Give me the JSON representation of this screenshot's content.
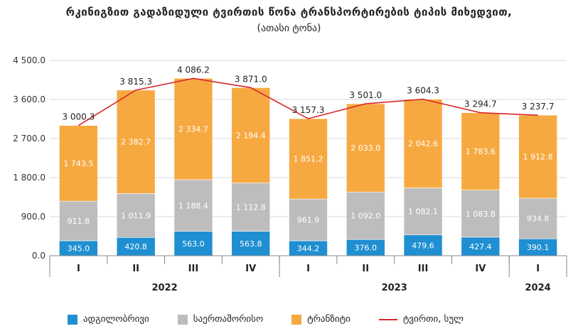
{
  "chart_data": {
    "type": "bar",
    "title": "რკინიგზით გადაზიდული ტვირთის წონა ტრანსპორტირების ტიპის მიხედვით,",
    "subtitle": "(ათასი ტონა)",
    "categories": [
      "I",
      "II",
      "III",
      "IV",
      "I",
      "II",
      "III",
      "IV",
      "I"
    ],
    "years": [
      {
        "label": "2022",
        "count": 4
      },
      {
        "label": "2023",
        "count": 4
      },
      {
        "label": "2024",
        "count": 1
      }
    ],
    "ylim": [
      0,
      4500
    ],
    "yticks": [
      0,
      900,
      1800,
      2700,
      3600,
      4500
    ],
    "ytick_labels": [
      "0.0",
      "900.0",
      "1 800.0",
      "2 700.0",
      "3 600.0",
      "4 500.0"
    ],
    "series": [
      {
        "name": "ადგილობრივი",
        "color": "#1f8fd1",
        "values": [
          345.0,
          420.8,
          563.0,
          563.8,
          344.2,
          376.0,
          479.6,
          427.4,
          390.1
        ],
        "labels": [
          "345.0",
          "420.8",
          "563.0",
          "563.8",
          "344.2",
          "376.0",
          "479.6",
          "427.4",
          "390.1"
        ]
      },
      {
        "name": "საერთაშორისო",
        "color": "#bdbdbd",
        "values": [
          911.8,
          1011.9,
          1188.4,
          1112.8,
          961.9,
          1092.0,
          1082.1,
          1083.8,
          934.8
        ],
        "labels": [
          "911.8",
          "1 011.9",
          "1 188.4",
          "1 112.8",
          "961.9",
          "1 092.0",
          "1 082.1",
          "1 083.8",
          "934.8"
        ]
      },
      {
        "name": "ტრანზიტი",
        "color": "#f7a941",
        "values": [
          1743.5,
          2382.7,
          2334.7,
          2194.4,
          1851.2,
          2033.0,
          2042.6,
          1783.6,
          1912.8
        ],
        "labels": [
          "1 743.5",
          "2 382.7",
          "2 334.7",
          "2 194.4",
          "1 851.2",
          "2 033.0",
          "2 042.6",
          "1 783.6",
          "1 912.8"
        ]
      }
    ],
    "total": {
      "name": "ტვირთი, სულ",
      "color": "#d6282d",
      "values": [
        3000.3,
        3815.3,
        4086.2,
        3871.0,
        3157.3,
        3501.0,
        3604.3,
        3294.7,
        3237.7
      ],
      "labels": [
        "3 000.3",
        "3 815.3",
        "4 086.2",
        "3 871.0",
        "3 157.3",
        "3 501.0",
        "3 604.3",
        "3 294.7",
        "3 237.7"
      ]
    },
    "grid": true,
    "legend": "bottom"
  }
}
